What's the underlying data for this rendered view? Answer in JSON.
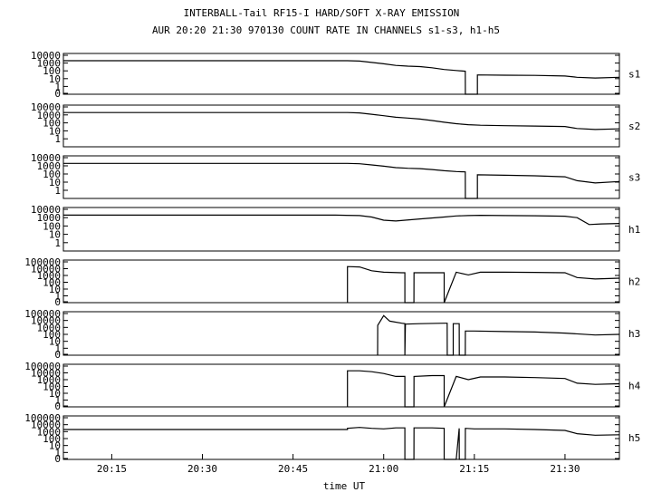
{
  "chart_data": {
    "type": "line",
    "title": "INTERBALL-Tail RF15-I HARD/SOFT X-RAY EMISSION",
    "subtitle": "AUR 20:20 21:30 970130   COUNT RATE IN CHANNELS s1-s3, h1-h5",
    "xlabel": "time UT",
    "x_ticks": [
      "20:15",
      "20:30",
      "20:45",
      "21:00",
      "21:15",
      "21:30"
    ],
    "x_tick_minutes": [
      15,
      30,
      45,
      60,
      75,
      90
    ],
    "xlim_minutes": [
      7,
      99
    ],
    "y_scale": "log",
    "grid": false,
    "series": [
      {
        "name": "s1",
        "y_ticks": [
          "10000",
          "1000",
          "100",
          "10",
          "1",
          "0"
        ],
        "ylim": [
          0,
          10000
        ],
        "x": [
          7,
          54,
          56,
          58,
          60,
          62,
          64,
          66,
          68,
          70,
          72,
          73.5,
          73.51,
          75.5,
          75.51,
          80,
          85,
          90,
          92,
          95,
          99
        ],
        "y": [
          2000,
          2000,
          1800,
          1200,
          800,
          500,
          400,
          350,
          250,
          150,
          110,
          90,
          0,
          0,
          30,
          28,
          26,
          22,
          15,
          12,
          15
        ]
      },
      {
        "name": "s2",
        "y_ticks": [
          "10000",
          "1000",
          "100",
          "10",
          "1"
        ],
        "ylim": [
          0,
          10000
        ],
        "x": [
          7,
          54,
          56,
          58,
          60,
          62,
          64,
          66,
          68,
          70,
          72,
          74,
          76,
          80,
          85,
          90,
          92,
          95,
          99
        ],
        "y": [
          2000,
          2000,
          1800,
          1200,
          800,
          500,
          400,
          300,
          200,
          120,
          80,
          60,
          50,
          45,
          40,
          35,
          20,
          15,
          18
        ]
      },
      {
        "name": "s3",
        "y_ticks": [
          "10000",
          "1000",
          "100",
          "10",
          "1"
        ],
        "ylim": [
          0,
          10000
        ],
        "x": [
          7,
          54,
          56,
          58,
          60,
          62,
          64,
          66,
          68,
          70,
          72,
          73.5,
          73.51,
          75.5,
          75.51,
          80,
          85,
          90,
          92,
          95,
          99
        ],
        "y": [
          2000,
          2000,
          1800,
          1300,
          900,
          600,
          500,
          450,
          350,
          250,
          200,
          180,
          0,
          0,
          80,
          70,
          60,
          45,
          15,
          8,
          12
        ]
      },
      {
        "name": "h1",
        "y_ticks": [
          "10000",
          "1000",
          "100",
          "10",
          "1"
        ],
        "ylim": [
          0,
          10000
        ],
        "x": [
          7,
          52,
          56,
          58,
          60,
          62,
          66,
          70,
          72,
          74,
          76,
          80,
          85,
          90,
          92,
          94,
          96,
          99
        ],
        "y": [
          2000,
          2000,
          1800,
          1200,
          500,
          400,
          700,
          1200,
          1600,
          1800,
          1900,
          1800,
          1700,
          1500,
          1000,
          150,
          180,
          200
        ]
      },
      {
        "name": "h2",
        "y_ticks": [
          "100000",
          "10000",
          "1000",
          "100",
          "10",
          "1",
          "0"
        ],
        "ylim": [
          0,
          100000
        ],
        "x": [
          54,
          54.01,
          56,
          58,
          60,
          63,
          63.5,
          63.51,
          65,
          65.01,
          68,
          70,
          70.01,
          72,
          74,
          76,
          80,
          85,
          90,
          92,
          95,
          99
        ],
        "y": [
          0,
          20000,
          18000,
          5000,
          3000,
          2500,
          2500,
          0,
          0,
          2500,
          2500,
          2500,
          0,
          3000,
          1200,
          3000,
          3000,
          2800,
          2500,
          500,
          300,
          400
        ]
      },
      {
        "name": "h3",
        "y_ticks": [
          "100000",
          "10000",
          "1000",
          "100",
          "10",
          "1",
          "0"
        ],
        "ylim": [
          0,
          100000
        ],
        "x": [
          59,
          59.01,
          60,
          61,
          63,
          63.5,
          63.51,
          63.6,
          66,
          70,
          70.5,
          70.51,
          71.5,
          71.51,
          72,
          72.5,
          72.51,
          73.5,
          73.51,
          75,
          80,
          85,
          90,
          95,
          99
        ],
        "y": [
          0,
          2000,
          50000,
          8000,
          4000,
          3500,
          0,
          3000,
          3500,
          4000,
          4000,
          0,
          0,
          3500,
          3500,
          3500,
          0,
          0,
          300,
          300,
          250,
          220,
          150,
          80,
          100
        ]
      },
      {
        "name": "h4",
        "y_ticks": [
          "100000",
          "10000",
          "1000",
          "100",
          "10",
          "1",
          "0"
        ],
        "ylim": [
          0,
          100000
        ],
        "x": [
          54,
          54.01,
          56,
          58,
          60,
          62,
          63.5,
          63.51,
          65,
          65.01,
          68,
          70,
          70.01,
          72,
          74,
          76,
          80,
          85,
          90,
          92,
          95,
          99
        ],
        "y": [
          0,
          20000,
          20000,
          15000,
          8000,
          3000,
          3000,
          0,
          0,
          3000,
          4000,
          4000,
          0,
          3000,
          1000,
          2500,
          2500,
          2000,
          1500,
          300,
          200,
          250
        ]
      },
      {
        "name": "h5",
        "y_ticks": [
          "100000",
          "10000",
          "1000",
          "100",
          "10",
          "1",
          "0"
        ],
        "ylim": [
          0,
          100000
        ],
        "x": [
          7,
          54,
          54.01,
          56,
          58,
          60,
          62,
          63.5,
          63.51,
          65,
          65.01,
          68,
          70,
          70.01,
          72,
          72.5,
          72.51,
          73.5,
          73.51,
          75,
          80,
          85,
          90,
          92,
          95,
          99
        ],
        "y": [
          2000,
          2000,
          3000,
          4000,
          3000,
          2500,
          3500,
          3500,
          0,
          0,
          3500,
          3500,
          3000,
          0,
          0,
          3000,
          0,
          0,
          3000,
          2500,
          2500,
          2000,
          1500,
          500,
          300,
          350
        ]
      }
    ]
  }
}
